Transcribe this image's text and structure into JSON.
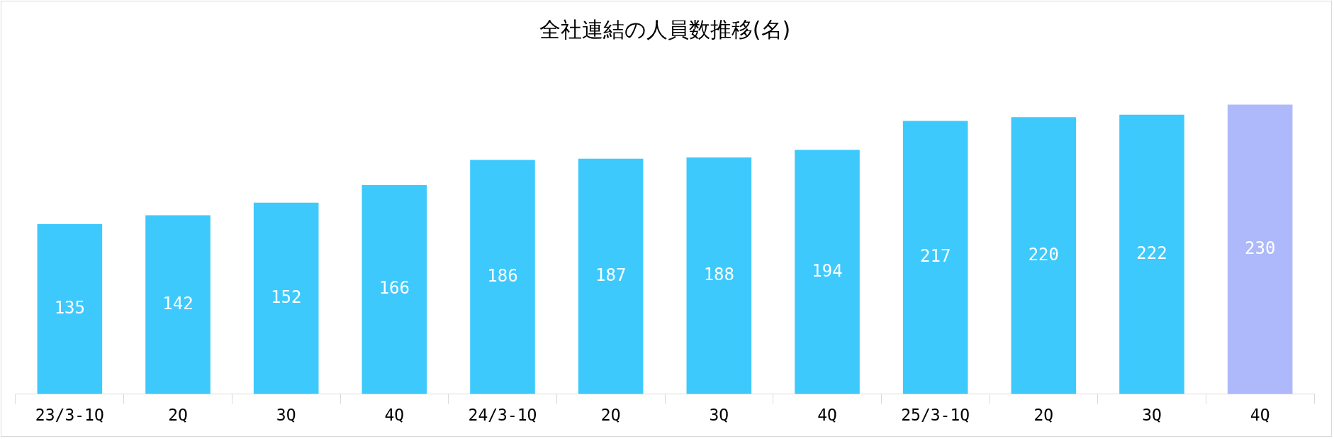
{
  "chart_data": {
    "type": "bar",
    "title": "全社連結の人員数推移(名)",
    "categories": [
      "23/3-1Q",
      "2Q",
      "3Q",
      "4Q",
      "24/3-1Q",
      "2Q",
      "3Q",
      "4Q",
      "25/3-1Q",
      "2Q",
      "3Q",
      "4Q"
    ],
    "values": [
      135,
      142,
      152,
      166,
      186,
      187,
      188,
      194,
      217,
      220,
      222,
      230
    ],
    "colors": [
      "#3ec9fd",
      "#3ec9fd",
      "#3ec9fd",
      "#3ec9fd",
      "#3ec9fd",
      "#3ec9fd",
      "#3ec9fd",
      "#3ec9fd",
      "#3ec9fd",
      "#3ec9fd",
      "#3ec9fd",
      "#adb9fb"
    ],
    "data_labels": true,
    "grid": false,
    "legend": false,
    "tick_labels": "x"
  }
}
